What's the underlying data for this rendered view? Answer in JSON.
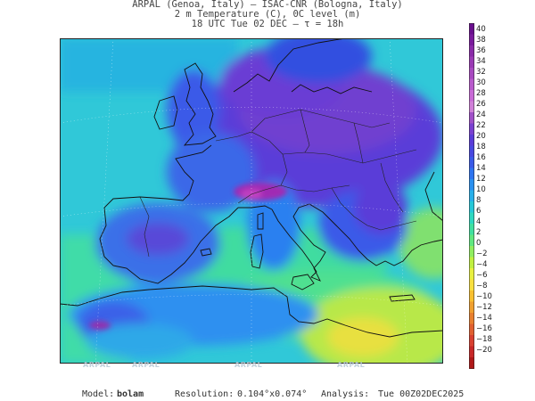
{
  "header": {
    "line1": "ARPAL (Genoa, Italy)  —  ISAC-CNR (Bologna, Italy)",
    "line2": "2 m Temperature (C), 0C level (m)",
    "line3": "18 UTC Tue 02 DEC  —  τ = 18h"
  },
  "watermarks": [
    "ARPAL",
    "ARPAL",
    "ARPAL",
    "ARPAL"
  ],
  "colorbar": {
    "ticks": [
      "40",
      "38",
      "36",
      "34",
      "32",
      "30",
      "28",
      "26",
      "24",
      "22",
      "20",
      "18",
      "16",
      "14",
      "12",
      "10",
      "8",
      "6",
      "4",
      "2",
      "0",
      "−2",
      "−4",
      "−6",
      "−8",
      "−10",
      "−12",
      "−14",
      "−16",
      "−18",
      "−20"
    ],
    "colors": [
      "#6a0f8e",
      "#7a1a9c",
      "#8a2aa8",
      "#9a3ab4",
      "#a84ac0",
      "#b85acc",
      "#c86ad6",
      "#d080d8",
      "#a050c8",
      "#7a40d0",
      "#5a3cd8",
      "#4848e0",
      "#3a5ae8",
      "#2e74f0",
      "#2a90f0",
      "#28b0ea",
      "#26c8d8",
      "#2ed8c0",
      "#40e0a0",
      "#60e880",
      "#90ee60",
      "#c0f040",
      "#e8f040",
      "#f8e040",
      "#f8c030",
      "#f0a030",
      "#e88030",
      "#e06030",
      "#d84030",
      "#c82828",
      "#b01818"
    ]
  },
  "footer": {
    "model_label": "Model:",
    "model_value": "bolam",
    "resolution_label": "Resolution:",
    "resolution_value": "0.104°x0.074°",
    "analysis_label": "Analysis:",
    "analysis_value": "Tue 00Z02DEC2025"
  }
}
